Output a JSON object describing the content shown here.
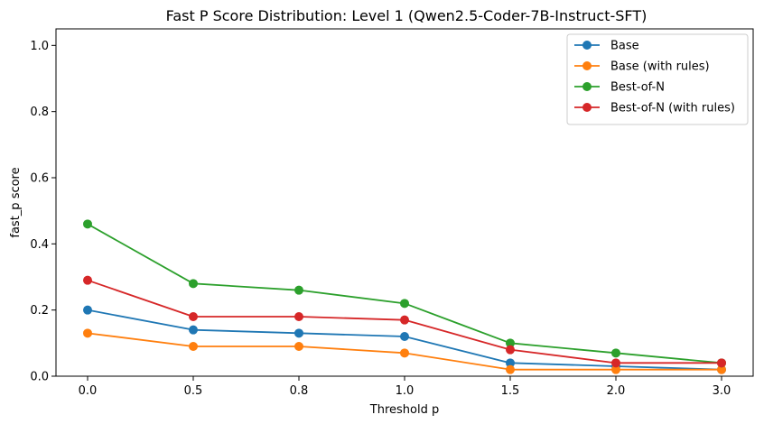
{
  "chart_data": {
    "type": "line",
    "title": "Fast P Score Distribution: Level 1 (Qwen2.5-Coder-7B-Instruct-SFT)",
    "xlabel": "Threshold p",
    "ylabel": "fast_p score",
    "categories": [
      "0.0",
      "0.5",
      "0.8",
      "1.0",
      "1.5",
      "2.0",
      "3.0"
    ],
    "ylim": [
      0,
      1.05
    ],
    "yticks": [
      "0.0",
      "0.2",
      "0.4",
      "0.6",
      "0.8",
      "1.0"
    ],
    "grid": false,
    "legend_position": "top-right",
    "series": [
      {
        "name": "Base",
        "color": "#1f77b4",
        "values": [
          0.2,
          0.14,
          0.13,
          0.12,
          0.04,
          0.03,
          0.02
        ]
      },
      {
        "name": "Base (with rules)",
        "color": "#ff7f0e",
        "values": [
          0.13,
          0.09,
          0.09,
          0.07,
          0.02,
          0.02,
          0.02
        ]
      },
      {
        "name": "Best-of-N",
        "color": "#2ca02c",
        "values": [
          0.46,
          0.28,
          0.26,
          0.22,
          0.1,
          0.07,
          0.04
        ]
      },
      {
        "name": "Best-of-N (with rules)",
        "color": "#d62728",
        "values": [
          0.29,
          0.18,
          0.18,
          0.17,
          0.08,
          0.04,
          0.04
        ]
      }
    ]
  }
}
